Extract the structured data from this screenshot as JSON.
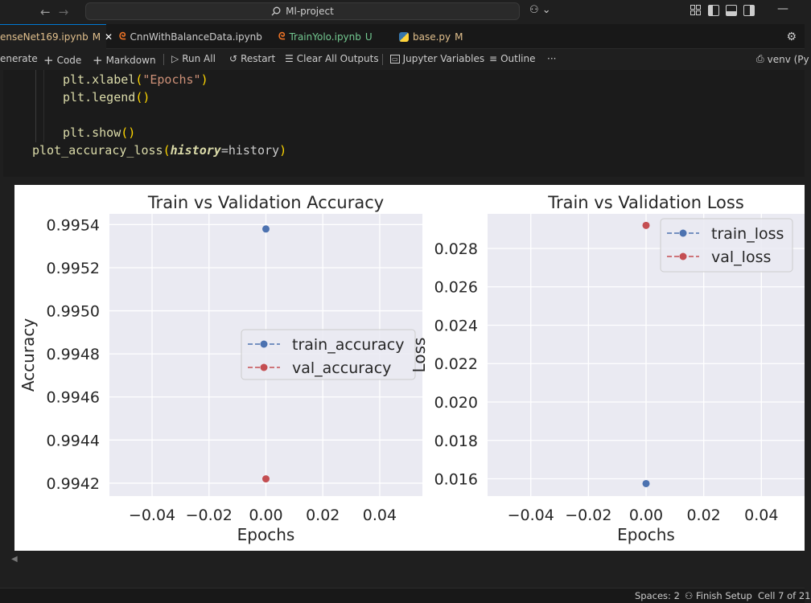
{
  "titlebar": {
    "search_text": "Ml-project"
  },
  "tabs": [
    {
      "label": "enseNet169.ipynb",
      "status": "M"
    },
    {
      "label": "CnnWithBalanceData.ipynb",
      "status": ""
    },
    {
      "label": "TrainYolo.ipynb",
      "status": "U"
    },
    {
      "label": "base.py",
      "status": "M"
    }
  ],
  "toolbar": {
    "generate": "enerate",
    "code": "Code",
    "markdown": "Markdown",
    "run_all": "Run All",
    "restart": "Restart",
    "clear_outputs": "Clear All Outputs",
    "jupyter_variables": "Jupyter Variables",
    "outline": "Outline",
    "more": "···",
    "kernel": "venv (Py"
  },
  "code_lines": [
    {
      "fn": "plt.xlabel",
      "open": "(",
      "arg": "\"Epochs\"",
      "close": ")"
    },
    {
      "fn": "plt.legend",
      "open": "(",
      "arg": "",
      "close": ")"
    },
    {
      "fn": "plt.show",
      "open": "(",
      "arg": "",
      "close": ")"
    },
    {
      "fn": "plot_accuracy_loss",
      "open": "(",
      "param": "history",
      "eq": "=history",
      "close": ")"
    }
  ],
  "chart_data": [
    {
      "type": "scatter",
      "title": "Train vs Validation Accuracy",
      "xlabel": "Epochs",
      "ylabel": "Accuracy",
      "xlim": [
        -0.055,
        0.055
      ],
      "ylim": [
        0.99414,
        0.99545
      ],
      "xticks": [
        "−0.04",
        "−0.02",
        "0.00",
        "0.02",
        "0.04"
      ],
      "xtick_values": [
        -0.04,
        -0.02,
        0.0,
        0.02,
        0.04
      ],
      "yticks": [
        "0.9942",
        "0.9944",
        "0.9946",
        "0.9948",
        "0.9950",
        "0.9952",
        "0.9954"
      ],
      "ytick_values": [
        0.9942,
        0.9944,
        0.9946,
        0.9948,
        0.995,
        0.9952,
        0.9954
      ],
      "legend_position": "center-right",
      "grid": true,
      "series": [
        {
          "name": "train_accuracy",
          "x": [
            0.0
          ],
          "y": [
            0.99538
          ],
          "color": "#4c72b0"
        },
        {
          "name": "val_accuracy",
          "x": [
            0.0
          ],
          "y": [
            0.99422
          ],
          "color": "#c44e52"
        }
      ]
    },
    {
      "type": "scatter",
      "title": "Train vs Validation Loss",
      "xlabel": "Epochs",
      "ylabel": "Loss",
      "xlim": [
        -0.055,
        0.055
      ],
      "ylim": [
        0.0151,
        0.0298
      ],
      "xticks": [
        "−0.04",
        "−0.02",
        "0.00",
        "0.02",
        "0.04"
      ],
      "xtick_values": [
        -0.04,
        -0.02,
        0.0,
        0.02,
        0.04
      ],
      "yticks": [
        "0.016",
        "0.018",
        "0.020",
        "0.022",
        "0.024",
        "0.026",
        "0.028"
      ],
      "ytick_values": [
        0.016,
        0.018,
        0.02,
        0.022,
        0.024,
        0.026,
        0.028
      ],
      "legend_position": "upper-right",
      "grid": true,
      "series": [
        {
          "name": "train_loss",
          "x": [
            0.0
          ],
          "y": [
            0.01575
          ],
          "color": "#4c72b0"
        },
        {
          "name": "val_loss",
          "x": [
            0.0
          ],
          "y": [
            0.0292
          ],
          "color": "#c44e52"
        }
      ]
    }
  ],
  "statusbar": {
    "spaces": "Spaces: 2",
    "finish_setup": "Finish Setup",
    "cell": "Cell 7 of 21"
  },
  "colors": {
    "accent": "#0078d4",
    "plot_bg": "#eaeaf2",
    "train": "#4c72b0",
    "val": "#c44e52"
  }
}
